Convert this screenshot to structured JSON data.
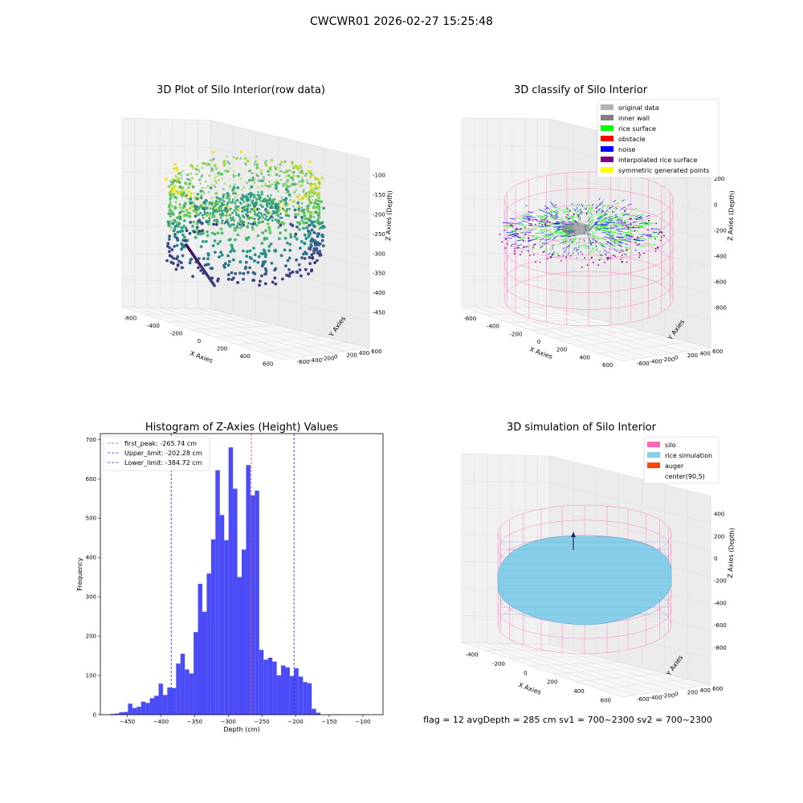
{
  "suptitle": "CWCWR01 2026-02-27 15:25:48",
  "footer": "flag = 12   avgDepth = 285 cm   sv1 = 700~2300   sv2 = 700~2300",
  "colors": {
    "histogram": "#4b4bf7",
    "first_peak": "#e8474a",
    "limit_lines": "#2323c8",
    "silo": "#ff69b4",
    "rice_simulation": "#87ceeb",
    "auger": "#ff4500",
    "original_data": "#b3b3b3",
    "inner_wall": "#808080",
    "rice_surface": "#00ff00",
    "obstacle": "#ff0000",
    "noise": "#0000ff",
    "interpolated_rice_surface": "#800080",
    "symmetric_generated_points": "#ffff00"
  },
  "chart_data": [
    {
      "type": "scatter",
      "panel": "top-left",
      "title": "3D Plot of Silo Interior(row data)",
      "xlabel": "X Axies",
      "ylabel": "Y Axies",
      "zlabel": "Z Axies (Depth)",
      "xlim": [
        -650,
        650
      ],
      "ylim": [
        -650,
        650
      ],
      "zlim": [
        -480,
        -80
      ],
      "xticks": [
        "-600",
        "-400",
        "-200",
        "0",
        "200",
        "400",
        "600"
      ],
      "yticks": [
        "-600",
        "-400",
        "-200",
        "0",
        "200",
        "400",
        "600"
      ],
      "zticks": [
        "-100",
        "-150",
        "-200",
        "-250",
        "-300",
        "-350",
        "-400",
        "-450"
      ],
      "colormap": "viridis",
      "grid": true
    },
    {
      "type": "scatter",
      "panel": "top-right",
      "title": "3D classify of Silo Interior",
      "xlabel": "X Axies",
      "ylabel": "Y Axies",
      "zlabel": "Z Axies (Depth)",
      "xticks": [
        "-600",
        "-400",
        "-200",
        "0",
        "200",
        "400",
        "600"
      ],
      "yticks": [
        "-600",
        "-400",
        "-200",
        "0",
        "200",
        "400",
        "600"
      ],
      "zticks": [
        "200",
        "0",
        "-200",
        "-400",
        "-600",
        "-800"
      ],
      "legend_position": "upper-right",
      "legend": [
        {
          "label": "original data",
          "color": "#b3b3b3"
        },
        {
          "label": "inner wall",
          "color": "#808080"
        },
        {
          "label": "rice surface",
          "color": "#00ff00"
        },
        {
          "label": "obstacle",
          "color": "#ff0000"
        },
        {
          "label": "noise",
          "color": "#0000ff"
        },
        {
          "label": "interpolated rice surface",
          "color": "#800080"
        },
        {
          "label": "symmetric generated points",
          "color": "#ffff00"
        }
      ],
      "grid": true
    },
    {
      "type": "bar",
      "panel": "bottom-left",
      "title": "Histogram of Z-Axies (Height) Values",
      "xlabel": "Depth (cm)",
      "ylabel": "Frequency",
      "xlim": [
        -490,
        -70
      ],
      "ylim": [
        0,
        715
      ],
      "xticks": [
        -450,
        -400,
        -350,
        -300,
        -250,
        -200,
        -150,
        -100
      ],
      "yticks": [
        0,
        100,
        200,
        300,
        400,
        500,
        600,
        700
      ],
      "bin_start": -475,
      "bin_width": 6.5,
      "values": [
        2,
        3,
        6,
        7,
        28,
        17,
        20,
        33,
        30,
        42,
        48,
        79,
        50,
        69,
        68,
        130,
        155,
        115,
        105,
        210,
        333,
        262,
        359,
        446,
        622,
        508,
        444,
        680,
        575,
        350,
        420,
        635,
        558,
        570,
        165,
        140,
        145,
        135,
        100,
        125,
        120,
        98,
        118,
        97,
        83,
        80,
        15,
        5
      ],
      "vlines": [
        {
          "label": "first_peak: -265.74 cm",
          "x": -265.74,
          "color": "#e8474a"
        },
        {
          "label": "Upper_limit: -202.28 cm",
          "x": -202.28,
          "color": "#2323c8"
        },
        {
          "label": "Lower_limit: -384.72 cm",
          "x": -384.72,
          "color": "#2323c8"
        }
      ],
      "legend_position": "upper-left",
      "grid": false
    },
    {
      "type": "scatter",
      "panel": "bottom-right",
      "title": "3D simulation of Silo Interior",
      "xlabel": "X Axies",
      "ylabel": "Y Axies",
      "zlabel": "Z Axies (Depth)",
      "xticks": [
        "-400",
        "-200",
        "0",
        "200",
        "400",
        "600"
      ],
      "yticks": [
        "-600",
        "-400",
        "-200",
        "0",
        "200",
        "400",
        "600"
      ],
      "zticks": [
        "400",
        "200",
        "0",
        "-200",
        "-400",
        "-600",
        "-800"
      ],
      "legend_position": "upper-right",
      "legend": [
        {
          "label": "silo",
          "color": "#ff69b4"
        },
        {
          "label": "rice simulation",
          "color": "#87ceeb"
        },
        {
          "label": "auger",
          "color": "#ff4500"
        },
        {
          "label": "center(90,5)",
          "color": "#ffffff"
        }
      ],
      "grid": true
    }
  ]
}
